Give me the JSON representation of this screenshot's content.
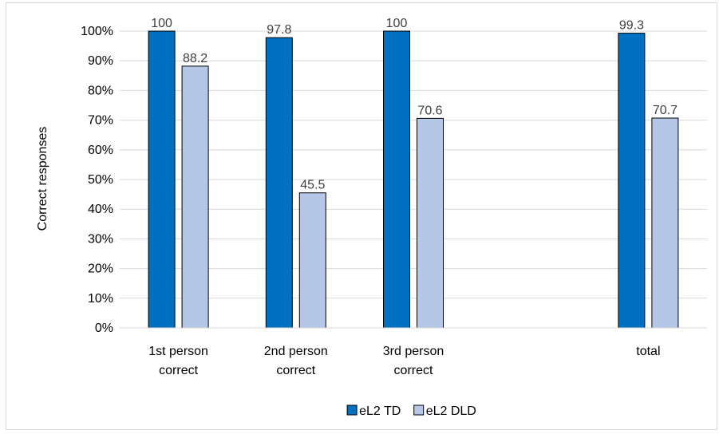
{
  "chart_data": {
    "type": "bar",
    "ylabel": "Correct responses",
    "ylim": [
      0,
      100
    ],
    "y_ticks": [
      "0%",
      "10%",
      "20%",
      "30%",
      "40%",
      "50%",
      "60%",
      "70%",
      "80%",
      "90%",
      "100%"
    ],
    "grid": true,
    "legend_position": "bottom",
    "categories": [
      [
        "1st person",
        "correct"
      ],
      [
        "2nd person",
        "correct"
      ],
      [
        "3rd person",
        "correct"
      ],
      [],
      [
        "total"
      ]
    ],
    "series": [
      {
        "name": "eL2 TD",
        "color": "#0070C0",
        "values": [
          100,
          97.8,
          100,
          null,
          99.3
        ],
        "labels": [
          "100",
          "97.8",
          "100",
          null,
          "99.3"
        ]
      },
      {
        "name": "eL2 DLD",
        "color": "#B4C7E7",
        "values": [
          88.2,
          45.5,
          70.6,
          null,
          70.7
        ],
        "labels": [
          "88.2",
          "45.5",
          "70.6",
          null,
          "70.7"
        ]
      }
    ]
  }
}
